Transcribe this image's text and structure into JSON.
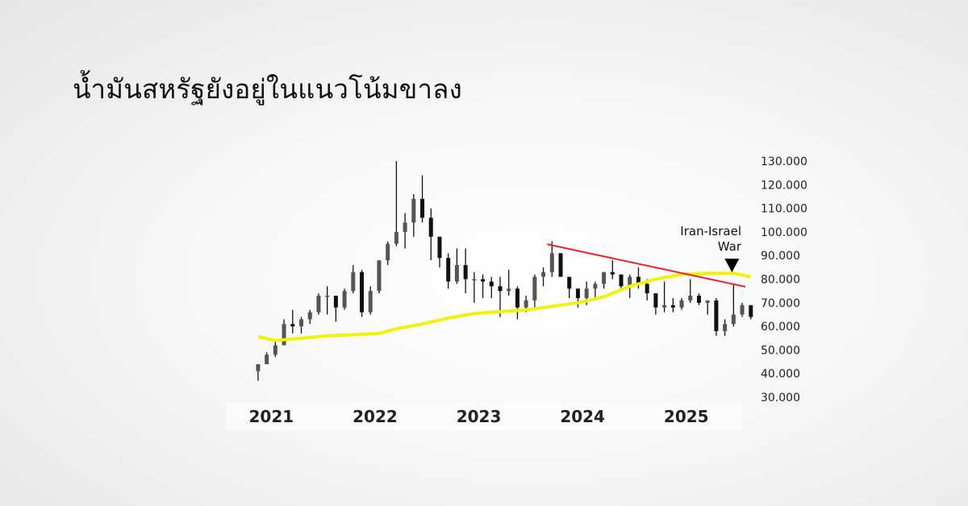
{
  "title": "น้ำมันสหรัฐยังอยู่ในแนวโน้มขาลง",
  "chart_data": {
    "type": "candlestick",
    "title": "น้ำมันสหรัฐยังอยู่ในแนวโน้มขาลง",
    "xlabel": "",
    "ylabel": "",
    "ylim": [
      30,
      130
    ],
    "y_ticks": [
      "130.000",
      "120.000",
      "110.000",
      "100.000",
      "90.000",
      "80.000",
      "70.000",
      "60.000",
      "50.000",
      "40.000",
      "30.000"
    ],
    "y_tick_values": [
      130,
      120,
      110,
      100,
      90,
      80,
      70,
      60,
      50,
      40,
      30
    ],
    "x_ticks": [
      "2021",
      "2022",
      "2023",
      "2024",
      "2025"
    ],
    "y_axis_position": "right",
    "grid": false,
    "colors": {
      "candles": "#111111",
      "moving_average": "#f2f20a",
      "trendline": "#e8262b",
      "marker": "#000000"
    },
    "candles": {
      "fields": [
        "month",
        "open",
        "high",
        "low",
        "close"
      ],
      "rows": [
        [
          "2020-11",
          41,
          44,
          37,
          44
        ],
        [
          "2020-12",
          44,
          49,
          44,
          48
        ],
        [
          "2021-01",
          48,
          54,
          47,
          52
        ],
        [
          "2021-02",
          52,
          63,
          52,
          61
        ],
        [
          "2021-03",
          61,
          67,
          57,
          60
        ],
        [
          "2021-04",
          60,
          64,
          57,
          63
        ],
        [
          "2021-05",
          63,
          67,
          61,
          66
        ],
        [
          "2021-06",
          66,
          74,
          65,
          73
        ],
        [
          "2021-07",
          73,
          77,
          65,
          73
        ],
        [
          "2021-08",
          73,
          73,
          62,
          68
        ],
        [
          "2021-09",
          68,
          76,
          67,
          75
        ],
        [
          "2021-10",
          75,
          86,
          74,
          83
        ],
        [
          "2021-11",
          83,
          84,
          64,
          66
        ],
        [
          "2021-12",
          66,
          77,
          65,
          75
        ],
        [
          "2022-01",
          75,
          88,
          74,
          88
        ],
        [
          "2022-02",
          88,
          96,
          86,
          95
        ],
        [
          "2022-03",
          95,
          130,
          94,
          100
        ],
        [
          "2022-04",
          100,
          108,
          93,
          104
        ],
        [
          "2022-05",
          104,
          116,
          98,
          114
        ],
        [
          "2022-06",
          114,
          124,
          104,
          106
        ],
        [
          "2022-07",
          106,
          110,
          88,
          98
        ],
        [
          "2022-08",
          98,
          97,
          85,
          89
        ],
        [
          "2022-09",
          89,
          91,
          76,
          79
        ],
        [
          "2022-10",
          79,
          93,
          78,
          86
        ],
        [
          "2022-11",
          86,
          93,
          74,
          80
        ],
        [
          "2022-12",
          80,
          83,
          70,
          80
        ],
        [
          "2023-01",
          80,
          82,
          72,
          79
        ],
        [
          "2023-02",
          79,
          81,
          72,
          77
        ],
        [
          "2023-03",
          77,
          81,
          64,
          75
        ],
        [
          "2023-04",
          75,
          84,
          73,
          76
        ],
        [
          "2023-05",
          76,
          77,
          63,
          68
        ],
        [
          "2023-06",
          68,
          73,
          66,
          71
        ],
        [
          "2023-07",
          71,
          82,
          67,
          81
        ],
        [
          "2023-08",
          81,
          85,
          77,
          83
        ],
        [
          "2023-09",
          83,
          96,
          81,
          91
        ],
        [
          "2023-10",
          91,
          90,
          81,
          81
        ],
        [
          "2023-11",
          81,
          80,
          72,
          76
        ],
        [
          "2023-12",
          76,
          76,
          68,
          72
        ],
        [
          "2024-01",
          72,
          79,
          69,
          76
        ],
        [
          "2024-02",
          76,
          79,
          72,
          78
        ],
        [
          "2024-03",
          78,
          83,
          76,
          83
        ],
        [
          "2024-04",
          83,
          88,
          80,
          82
        ],
        [
          "2024-05",
          82,
          81,
          76,
          77
        ],
        [
          "2024-06",
          77,
          82,
          72,
          81
        ],
        [
          "2024-07",
          81,
          85,
          76,
          78
        ],
        [
          "2024-08",
          78,
          80,
          71,
          74
        ],
        [
          "2024-09",
          74,
          74,
          65,
          68
        ],
        [
          "2024-10",
          68,
          79,
          66,
          69
        ],
        [
          "2024-11",
          69,
          72,
          66,
          68
        ],
        [
          "2024-12",
          68,
          72,
          67,
          71
        ],
        [
          "2025-01",
          71,
          80,
          70,
          73
        ],
        [
          "2025-02",
          73,
          74,
          69,
          70
        ],
        [
          "2025-03",
          70,
          71,
          65,
          71
        ],
        [
          "2025-04",
          71,
          72,
          56,
          58
        ],
        [
          "2025-05",
          58,
          63,
          56,
          61
        ],
        [
          "2025-06",
          61,
          78,
          60,
          65
        ],
        [
          "2025-07",
          65,
          70,
          64,
          69
        ],
        [
          "2025-08",
          69,
          69,
          63,
          64
        ]
      ]
    },
    "moving_average": {
      "points": [
        [
          "2020-11",
          55.7
        ],
        [
          "2021-01",
          54
        ],
        [
          "2021-04",
          55
        ],
        [
          "2021-07",
          56
        ],
        [
          "2021-10",
          56.5
        ],
        [
          "2022-01",
          57
        ],
        [
          "2022-03",
          59
        ],
        [
          "2022-06",
          61
        ],
        [
          "2022-09",
          63.5
        ],
        [
          "2022-12",
          65.5
        ],
        [
          "2023-06",
          67
        ],
        [
          "2023-12",
          70
        ],
        [
          "2024-03",
          72.5
        ],
        [
          "2024-06",
          77
        ],
        [
          "2024-09",
          80
        ],
        [
          "2024-12",
          82
        ],
        [
          "2025-03",
          82.5
        ],
        [
          "2025-06",
          82.5
        ],
        [
          "2025-08",
          81
        ]
      ]
    },
    "trendline": {
      "start": [
        "2023-09",
        94.8
      ],
      "end": [
        "2025-07",
        76.8
      ]
    },
    "annotations": [
      {
        "text_line1": "Iran-Israel",
        "text_line2": "War",
        "date": "2025-06",
        "marker": "down-triangle"
      }
    ]
  }
}
